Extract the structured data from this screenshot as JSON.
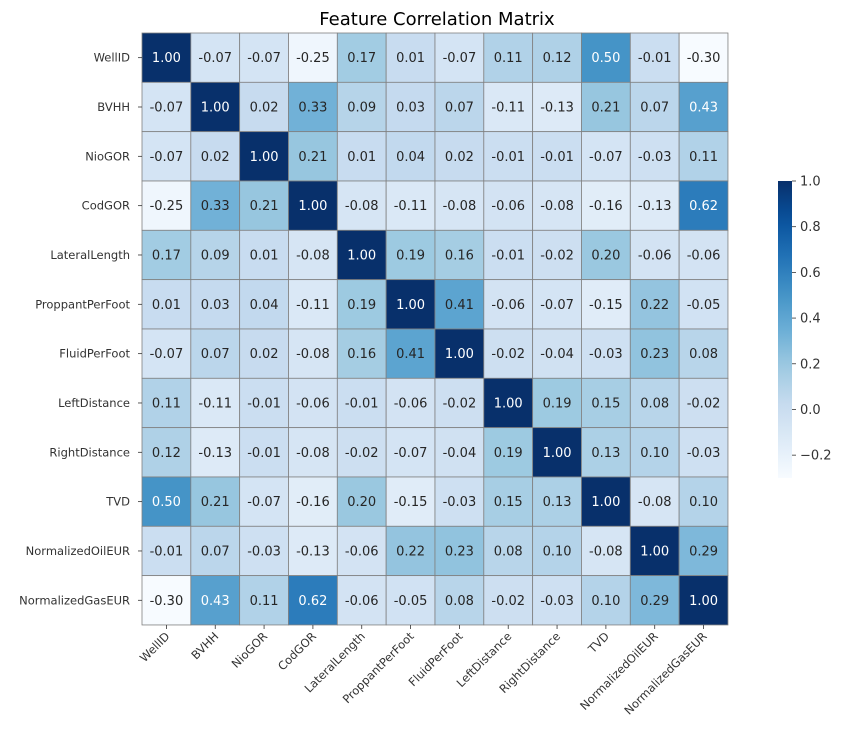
{
  "chart_data": {
    "type": "heatmap",
    "title": "Feature Correlation Matrix",
    "xlabel": "",
    "ylabel": "",
    "labels": [
      "WellID",
      "BVHH",
      "NioGOR",
      "CodGOR",
      "LateralLength",
      "ProppantPerFoot",
      "FluidPerFoot",
      "LeftDistance",
      "RightDistance",
      "TVD",
      "NormalizedOilEUR",
      "NormalizedGasEUR"
    ],
    "matrix": [
      [
        1.0,
        -0.07,
        -0.07,
        -0.25,
        0.17,
        0.01,
        -0.07,
        0.11,
        0.12,
        0.5,
        -0.01,
        -0.3
      ],
      [
        -0.07,
        1.0,
        0.02,
        0.33,
        0.09,
        0.03,
        0.07,
        -0.11,
        -0.13,
        0.21,
        0.07,
        0.43
      ],
      [
        -0.07,
        0.02,
        1.0,
        0.21,
        0.01,
        0.04,
        0.02,
        -0.01,
        -0.01,
        -0.07,
        -0.03,
        0.11
      ],
      [
        -0.25,
        0.33,
        0.21,
        1.0,
        -0.08,
        -0.11,
        -0.08,
        -0.06,
        -0.08,
        -0.16,
        -0.13,
        0.62
      ],
      [
        0.17,
        0.09,
        0.01,
        -0.08,
        1.0,
        0.19,
        0.16,
        -0.01,
        -0.02,
        0.2,
        -0.06,
        -0.06
      ],
      [
        0.01,
        0.03,
        0.04,
        -0.11,
        0.19,
        1.0,
        0.41,
        -0.06,
        -0.07,
        -0.15,
        0.22,
        -0.05
      ],
      [
        -0.07,
        0.07,
        0.02,
        -0.08,
        0.16,
        0.41,
        1.0,
        -0.02,
        -0.04,
        -0.03,
        0.23,
        0.08
      ],
      [
        0.11,
        -0.11,
        -0.01,
        -0.06,
        -0.01,
        -0.06,
        -0.02,
        1.0,
        0.19,
        0.15,
        0.08,
        -0.02
      ],
      [
        0.12,
        -0.13,
        -0.01,
        -0.08,
        -0.02,
        -0.07,
        -0.04,
        0.19,
        1.0,
        0.13,
        0.1,
        -0.03
      ],
      [
        0.5,
        0.21,
        -0.07,
        -0.16,
        0.2,
        -0.15,
        -0.03,
        0.15,
        0.13,
        1.0,
        -0.08,
        0.1
      ],
      [
        -0.01,
        0.07,
        -0.03,
        -0.13,
        -0.06,
        0.22,
        0.23,
        0.08,
        0.1,
        -0.08,
        1.0,
        0.29
      ],
      [
        -0.3,
        0.43,
        0.11,
        0.62,
        -0.06,
        -0.05,
        0.08,
        -0.02,
        -0.03,
        0.1,
        0.29,
        1.0
      ]
    ],
    "colorbar": {
      "min": -0.3,
      "max": 1.0,
      "ticks": [
        -0.2,
        0.0,
        0.2,
        0.4,
        0.6,
        0.8,
        1.0
      ],
      "tick_labels": [
        "−0.2",
        "0.0",
        "0.2",
        "0.4",
        "0.6",
        "0.8",
        "1.0"
      ],
      "colormap": "Blues",
      "low_color": "#f7fbff",
      "high_color": "#08306b"
    },
    "annotations": "values shown in every cell, 2 decimals",
    "grid": true
  }
}
